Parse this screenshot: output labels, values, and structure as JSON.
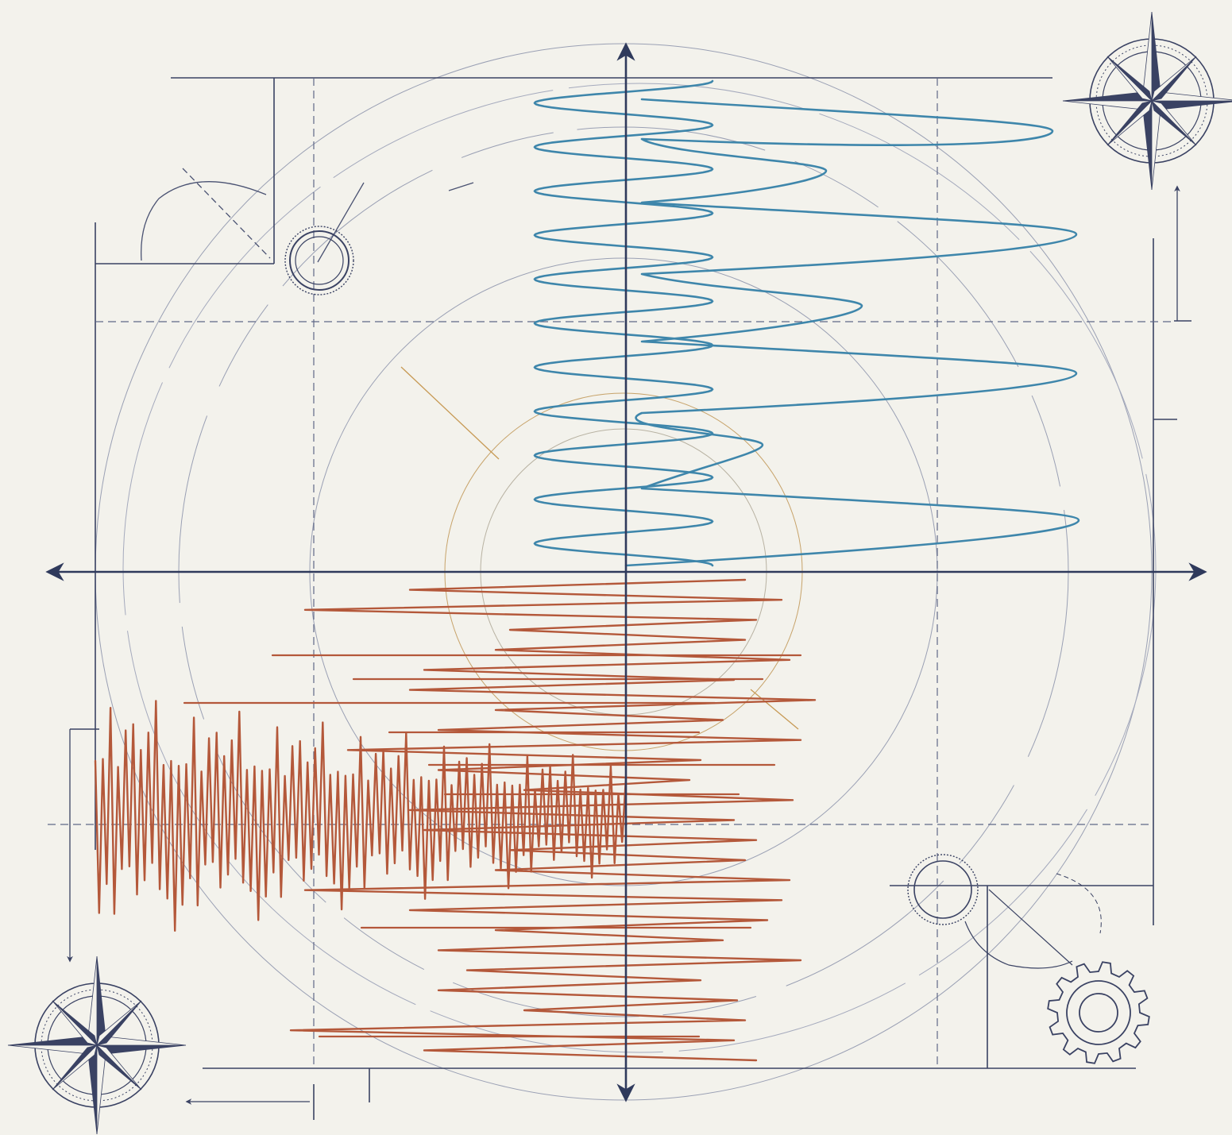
{
  "canvas": {
    "background": "#f3f2ec",
    "caption": ""
  },
  "colors": {
    "frame": "#3a4263",
    "axis": "#2f3a5c",
    "construction": "#6d7592",
    "blue_wave": "#3e86ab",
    "orange_wave": "#b4583a",
    "gold_line": "#c79a55"
  },
  "icons": [
    "compass-rose-icon",
    "compass-rose-icon",
    "gear-icon",
    "bearing-ring-icon"
  ],
  "chart_data": {
    "type": "line",
    "title": "",
    "xlabel": "",
    "ylabel": "",
    "grid": true,
    "legend": "none",
    "series": [
      {
        "values": [
          0.5,
          0.2,
          -0.4,
          -0.1,
          0.6,
          0.3,
          -0.5,
          0.1,
          0.9,
          -0.2,
          0.4,
          -0.6,
          0.7,
          0.0,
          0.3,
          -0.3,
          1.0,
          0.5,
          -0.1,
          0.8,
          0.0,
          0.6
        ]
      },
      {
        "values": [
          0.1,
          -0.9,
          0.3,
          0.8,
          -0.5,
          0.2,
          1.0,
          -0.3,
          0.6,
          -0.8,
          0.4,
          0.9,
          -0.6,
          0.3,
          -0.2,
          0.7,
          -0.4,
          0.5,
          0.2,
          -0.7,
          0.6,
          0.1
        ]
      }
    ]
  }
}
